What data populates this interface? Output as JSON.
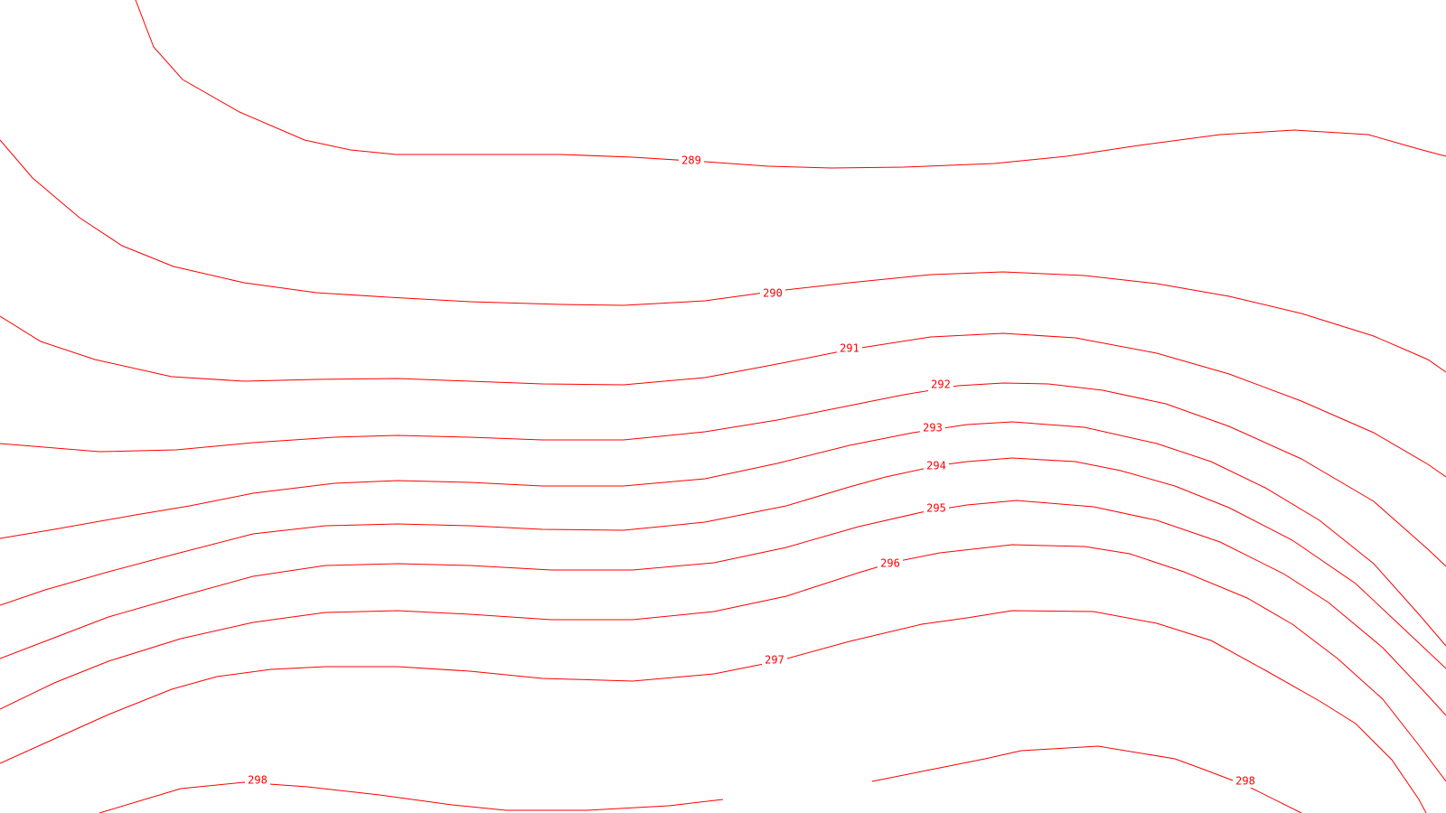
{
  "map": {
    "type": "contour-map",
    "line_color": "#ff0000",
    "background_color": "#ffffff",
    "contours": [
      {
        "name": "contour-289",
        "label": "289"
      },
      {
        "name": "contour-290",
        "label": "290"
      },
      {
        "name": "contour-291",
        "label": "291"
      },
      {
        "name": "contour-292",
        "label": "292"
      },
      {
        "name": "contour-293",
        "label": "293"
      },
      {
        "name": "contour-294",
        "label": "294"
      },
      {
        "name": "contour-295",
        "label": "295"
      },
      {
        "name": "contour-296",
        "label": "296"
      },
      {
        "name": "contour-297",
        "label": "297"
      },
      {
        "name": "contour-298-west",
        "label": "298"
      },
      {
        "name": "contour-298-east",
        "label": "298"
      }
    ]
  }
}
